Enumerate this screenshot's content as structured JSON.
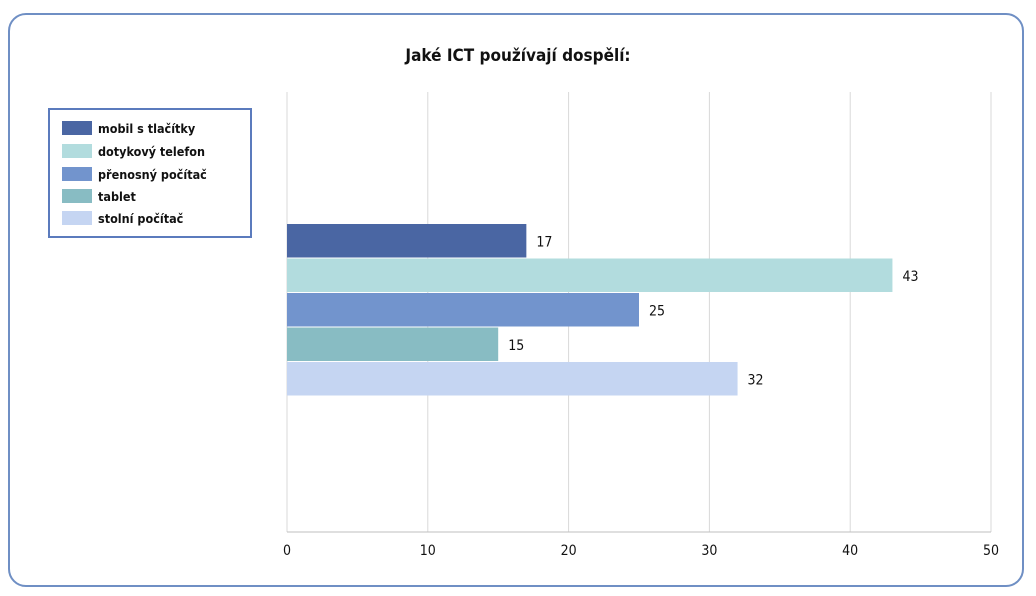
{
  "chart_data": {
    "type": "bar",
    "orientation": "horizontal",
    "title": "Jaké ICT používají dospělí:",
    "xlabel": "",
    "ylabel": "",
    "xlim": [
      0,
      50
    ],
    "ticks": [
      0,
      10,
      20,
      30,
      40,
      50
    ],
    "grid": true,
    "legend_position": "left",
    "series": [
      {
        "name": "mobil s tlačítky",
        "value": 17,
        "color": "#4a66a3"
      },
      {
        "name": "dotykový telefon",
        "value": 43,
        "color": "#b2dcde"
      },
      {
        "name": "přenosný počítač",
        "value": 25,
        "color": "#7294cd"
      },
      {
        "name": "tablet",
        "value": 15,
        "color": "#88bcc3"
      },
      {
        "name": "stolní počítač",
        "value": 32,
        "color": "#c5d5f2"
      }
    ]
  }
}
